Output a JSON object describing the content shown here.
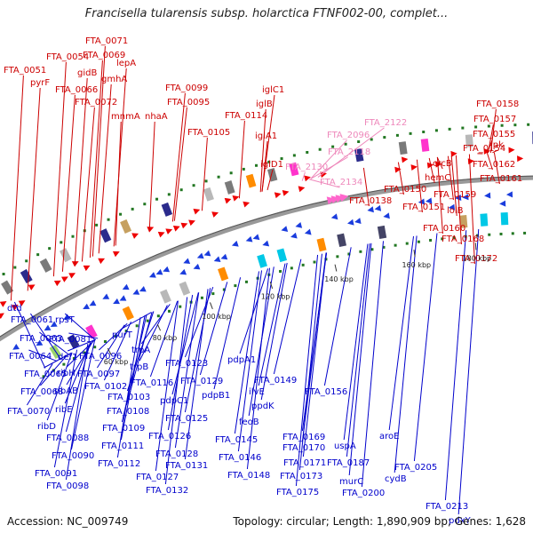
{
  "title": "Francisella tularensis subsp. holarctica FTNF002-00, complet...",
  "footer": {
    "accession": "Accession: NC_009749",
    "summary": "Topology: circular; Length: 1,890,909 bp; Genes: 1,628"
  },
  "colors": {
    "forward_label": "#cc0000",
    "reverse_label": "#0000cc",
    "rna_label": "#ee88bb",
    "backbone": "#888888",
    "tick": "#227722"
  },
  "ticks": [
    "60 kbp",
    "80 kbp",
    "100 kbp",
    "120 kbp",
    "140 kbp",
    "160 kbp",
    "180 kbp",
    "200 kbp"
  ],
  "forward_labels": [
    "FTA_0051",
    "FTA_0054",
    "FTA_0071",
    "FTA_0069",
    "lepA",
    "pyrF",
    "gidB",
    "FTA_0066",
    "gmhA",
    "FTA_0072",
    "mnmA",
    "nhaA",
    "FTA_0099",
    "FTA_0095",
    "FTA_0105",
    "FTA_0114",
    "iglB",
    "iglC1",
    "iglA1",
    "iglD1",
    "FTA_0138",
    "FTA_0150",
    "FTA_0151",
    "hemC",
    "crcB",
    "FTA_0154",
    "FTA_0155",
    "FTA_0157",
    "FTA_0158",
    "ipk",
    "FTA_0162",
    "FTA_0161",
    "FTA_0159",
    "lolB",
    "FTA_0160",
    "FTA_0168",
    "FTA_0172"
  ],
  "rna_labels": [
    "FTA_2122",
    "FTA_2096",
    "FTA_2118",
    "FTA_2130",
    "FTA_2134"
  ],
  "reverse_labels": [
    "dtd",
    "FTA_0061",
    "FTA_0063",
    "FTA_0064",
    "FTA_0065",
    "FTA_0068",
    "FTA_0070",
    "rpsT",
    "FTA_0081",
    "def1",
    "ribH",
    "ribAB",
    "ribE",
    "ribD",
    "FTA_0088",
    "FTA_0090",
    "FTA_0091",
    "FTA_0098",
    "purT",
    "FTA_0096",
    "FTA_0097",
    "FTA_0102",
    "FTA_0103",
    "FTA_0108",
    "FTA_0109",
    "FTA_0111",
    "FTA_0112",
    "trpA",
    "trpB",
    "FTA_0116",
    "FTA_0123",
    "pdpC1",
    "FTA_0125",
    "FTA_0126",
    "FTA_0128",
    "FTA_0127",
    "FTA_0131",
    "FTA_0132",
    "FTA_0129",
    "pdpB1",
    "pdpA1",
    "FTA_0145",
    "FTA_0146",
    "FTA_0148",
    "feoB",
    "ppdK",
    "ilvE",
    "FTA_0149",
    "FTA_0156",
    "FTA_0169",
    "FTA_0170",
    "FTA_0171",
    "FTA_0173",
    "FTA_0175",
    "uspA",
    "FTA_0187",
    "murC",
    "FTA_0200",
    "aroE",
    "FTA_0205",
    "cydB",
    "FTA_0213",
    "pdxY"
  ]
}
